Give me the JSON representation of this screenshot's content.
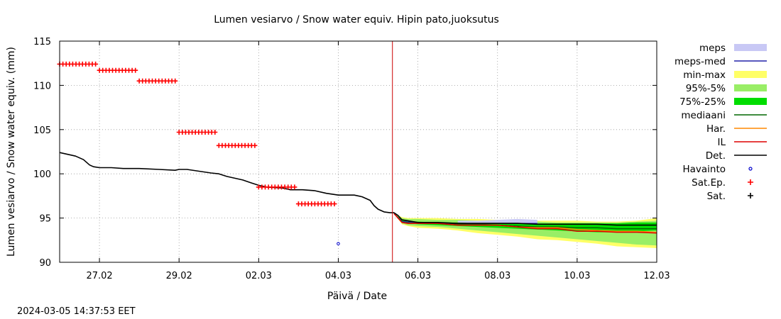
{
  "chart_data": {
    "type": "line",
    "title": "Lumen vesiarvo / Snow water equiv.  Hipin pato,juoksutus",
    "xlabel": "Päivä / Date",
    "ylabel": "Lumen vesiarvo / Snow water equiv. (mm)",
    "ylim": [
      90,
      115
    ],
    "yticks": [
      90,
      95,
      100,
      105,
      110,
      115
    ],
    "xlim": [
      26.0,
      41.0
    ],
    "xticks": [
      {
        "value": 27,
        "label": "27.02"
      },
      {
        "value": 29,
        "label": "29.02"
      },
      {
        "value": 31,
        "label": "02.03"
      },
      {
        "value": 33,
        "label": "04.03"
      },
      {
        "value": 35,
        "label": "06.03"
      },
      {
        "value": 37,
        "label": "08.03"
      },
      {
        "value": 39,
        "label": "10.03"
      },
      {
        "value": 41,
        "label": "12.03"
      }
    ],
    "grid": true,
    "legend_position": "right",
    "forecast_start": 34.36,
    "timestamp": "2024-03-05 14:37:53 EET",
    "legend": [
      {
        "label": "meps",
        "style": "band",
        "color": "#c8c8f5"
      },
      {
        "label": "meps-med",
        "style": "line",
        "color": "#2222aa"
      },
      {
        "label": "min-max",
        "style": "band",
        "color": "#ffff66"
      },
      {
        "label": "95%-5%",
        "style": "band",
        "color": "#99ee66"
      },
      {
        "label": "75%-25%",
        "style": "band",
        "color": "#00dd00"
      },
      {
        "label": "mediaani",
        "style": "line",
        "color": "#006600"
      },
      {
        "label": "Har.",
        "style": "line",
        "color": "#ff8800"
      },
      {
        "label": "IL",
        "style": "line",
        "color": "#dd0000"
      },
      {
        "label": "Det.",
        "style": "line",
        "color": "#000000"
      },
      {
        "label": "Havainto",
        "style": "circle",
        "color": "#0000cc"
      },
      {
        "label": "Sat.Ep.",
        "style": "plus",
        "color": "#ff0000"
      },
      {
        "label": "Sat.",
        "style": "plus",
        "color": "#000000"
      }
    ],
    "det": {
      "x": [
        26.0,
        26.4,
        26.6,
        26.75,
        26.85,
        27.0,
        27.3,
        27.6,
        28.0,
        28.5,
        28.9,
        29.0,
        29.2,
        29.5,
        29.8,
        30.0,
        30.2,
        30.4,
        30.6,
        30.8,
        31.0,
        31.2,
        31.6,
        31.8,
        32.1,
        32.4,
        32.7,
        33.0,
        33.4,
        33.6,
        33.8,
        33.9,
        34.0,
        34.15,
        34.3,
        34.4,
        34.5,
        34.6,
        35.0,
        35.5,
        36.0,
        36.5,
        37.0,
        37.5,
        38.0,
        38.5,
        39.0,
        39.5,
        40.0,
        40.5,
        41.0
      ],
      "y": [
        102.4,
        102.0,
        101.6,
        101.0,
        100.8,
        100.7,
        100.7,
        100.6,
        100.6,
        100.5,
        100.4,
        100.5,
        100.5,
        100.3,
        100.1,
        100.0,
        99.7,
        99.5,
        99.3,
        99.0,
        98.7,
        98.5,
        98.4,
        98.2,
        98.2,
        98.1,
        97.8,
        97.6,
        97.6,
        97.4,
        97.0,
        96.4,
        96.0,
        95.7,
        95.6,
        95.6,
        95.3,
        94.8,
        94.5,
        94.5,
        94.4,
        94.4,
        94.4,
        94.4,
        94.3,
        94.3,
        94.3,
        94.3,
        94.2,
        94.2,
        94.2
      ]
    },
    "forecast_x": [
      34.4,
      34.6,
      34.75,
      35.0,
      35.5,
      36.0,
      36.5,
      37.0,
      37.5,
      38.0,
      38.5,
      39.0,
      39.5,
      40.0,
      40.5,
      41.0
    ],
    "minmax": {
      "upper": [
        95.5,
        95.1,
        95.0,
        95.0,
        95.0,
        94.9,
        94.9,
        94.8,
        94.8,
        94.7,
        94.7,
        94.7,
        94.6,
        94.6,
        94.7,
        95.0
      ],
      "lower": [
        95.5,
        94.3,
        94.1,
        93.9,
        93.8,
        93.6,
        93.3,
        93.1,
        92.9,
        92.6,
        92.5,
        92.3,
        92.1,
        91.8,
        91.7,
        91.6
      ]
    },
    "p95_5": {
      "upper": [
        95.5,
        95.0,
        94.9,
        94.9,
        94.8,
        94.8,
        94.7,
        94.7,
        94.6,
        94.6,
        94.5,
        94.5,
        94.5,
        94.5,
        94.6,
        94.7
      ],
      "lower": [
        95.5,
        94.4,
        94.2,
        94.1,
        94.0,
        93.8,
        93.6,
        93.4,
        93.2,
        93.0,
        92.8,
        92.6,
        92.4,
        92.2,
        92.0,
        91.9
      ]
    },
    "p75_25": {
      "upper": [
        95.5,
        94.8,
        94.6,
        94.6,
        94.5,
        94.5,
        94.4,
        94.4,
        94.4,
        94.4,
        94.4,
        94.4,
        94.4,
        94.4,
        94.5,
        94.5
      ],
      "lower": [
        95.5,
        94.5,
        94.4,
        94.3,
        94.2,
        94.1,
        94.0,
        93.9,
        93.8,
        93.7,
        93.6,
        93.5,
        93.4,
        93.4,
        93.5,
        93.6
      ]
    },
    "meps": {
      "x": [
        36.0,
        36.5,
        37.0,
        37.5,
        38.0
      ],
      "upper": [
        94.7,
        94.7,
        94.8,
        94.9,
        94.8
      ],
      "lower": [
        94.3,
        94.3,
        94.3,
        94.3,
        94.2
      ]
    },
    "meps_med": {
      "x": [
        34.4,
        34.6,
        35.0,
        36.0,
        37.0,
        38.0
      ],
      "y": [
        95.5,
        94.6,
        94.5,
        94.4,
        94.4,
        94.4
      ]
    },
    "mediaani": {
      "y": [
        95.5,
        94.6,
        94.5,
        94.5,
        94.4,
        94.3,
        94.3,
        94.2,
        94.1,
        94.0,
        94.0,
        93.9,
        93.9,
        93.8,
        93.8,
        93.8
      ]
    },
    "har": {
      "y": [
        95.5,
        94.5,
        94.4,
        94.4,
        94.4,
        94.2,
        94.2,
        94.2,
        94.0,
        93.9,
        93.9,
        93.7,
        93.6,
        93.5,
        93.5,
        93.4
      ]
    },
    "il": {
      "y": [
        95.5,
        94.5,
        94.4,
        94.4,
        94.4,
        94.2,
        94.2,
        94.2,
        94.0,
        93.8,
        93.8,
        93.5,
        93.5,
        93.4,
        93.4,
        93.3
      ]
    },
    "sat_ep": [
      {
        "x0": 26.0,
        "x1": 26.95,
        "y": 112.4
      },
      {
        "x0": 27.0,
        "x1": 27.95,
        "y": 111.7
      },
      {
        "x0": 28.0,
        "x1": 28.95,
        "y": 110.5
      },
      {
        "x0": 29.0,
        "x1": 29.95,
        "y": 104.7
      },
      {
        "x0": 30.0,
        "x1": 30.95,
        "y": 103.2
      },
      {
        "x0": 31.0,
        "x1": 31.95,
        "y": 98.5
      },
      {
        "x0": 32.0,
        "x1": 32.95,
        "y": 96.6
      }
    ],
    "havainto": [
      {
        "x": 33.0,
        "y": 92.1
      }
    ]
  }
}
